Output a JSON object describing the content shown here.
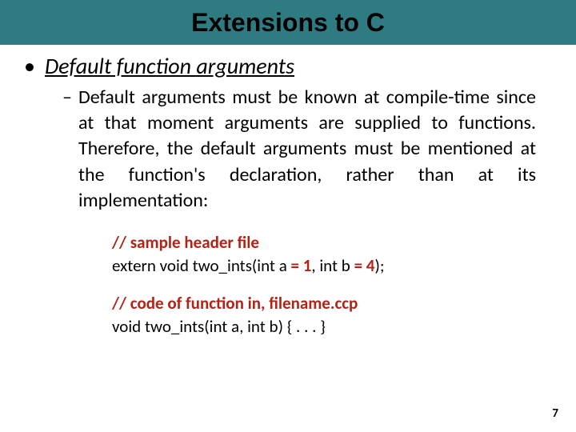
{
  "title": "Extensions to C",
  "bullet": {
    "marker": "•",
    "heading": "Default function arguments"
  },
  "sub": {
    "marker": "–",
    "text": "Default arguments must be known at compile-time since at that moment arguments are supplied to functions. Therefore, the default arguments must be mentioned at the function's declaration, rather than at its implementation:"
  },
  "code": {
    "c1_slash": "//",
    "c1_rest": " sample header file",
    "l2_a": "extern void two_ints(int a ",
    "l2_eq1": "= 1",
    "l2_b": ", int b ",
    "l2_eq4": "= 4",
    "l2_c": ");",
    "c3_slash": "//",
    "c3_rest": " code of function in, filename",
    "c3_dot": ".",
    "c3_ext": "ccp",
    "l4": "void two_ints(int a, int b) { . . . }"
  },
  "page": "7",
  "colors": {
    "title_bg": "#2f7b82",
    "accent": "#b02418"
  }
}
